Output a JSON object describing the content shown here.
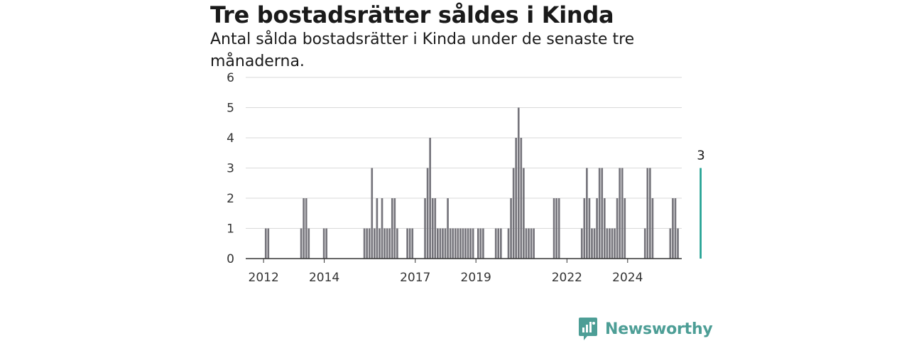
{
  "title": "Tre bostadsrätter såldes i Kinda",
  "subtitle": "Antal sålda bostadsrätter i Kinda under de senaste tre månaderna.",
  "brand": {
    "name": "Newsworthy",
    "icon": "newsworthy-logo-icon",
    "color": "#4d9e96"
  },
  "colors": {
    "bar": "#75747b",
    "highlight": "#1fa091",
    "grid": "#d9d9d9",
    "axis": "#333333"
  },
  "chart_data": {
    "type": "bar",
    "x_start": "2011-07",
    "values": [
      0,
      0,
      0,
      0,
      0,
      0,
      0,
      1,
      1,
      0,
      0,
      0,
      0,
      0,
      0,
      0,
      0,
      0,
      0,
      0,
      0,
      1,
      2,
      2,
      1,
      0,
      0,
      0,
      0,
      0,
      1,
      1,
      0,
      0,
      0,
      0,
      0,
      0,
      0,
      0,
      0,
      0,
      0,
      0,
      0,
      0,
      1,
      1,
      1,
      3,
      1,
      2,
      1,
      2,
      1,
      1,
      1,
      2,
      2,
      1,
      0,
      0,
      0,
      1,
      1,
      1,
      0,
      0,
      0,
      0,
      2,
      3,
      4,
      2,
      2,
      1,
      1,
      1,
      1,
      2,
      1,
      1,
      1,
      1,
      1,
      1,
      1,
      1,
      1,
      1,
      0,
      1,
      1,
      1,
      0,
      0,
      0,
      0,
      1,
      1,
      1,
      0,
      0,
      1,
      2,
      3,
      4,
      5,
      4,
      3,
      1,
      1,
      1,
      1,
      0,
      0,
      0,
      0,
      0,
      0,
      0,
      2,
      2,
      2,
      0,
      0,
      0,
      0,
      0,
      0,
      0,
      0,
      1,
      2,
      3,
      2,
      1,
      1,
      2,
      3,
      3,
      2,
      1,
      1,
      1,
      1,
      2,
      3,
      3,
      2,
      0,
      0,
      0,
      0,
      0,
      0,
      0,
      1,
      3,
      3,
      2,
      0,
      0,
      0,
      0,
      0,
      0,
      1,
      2,
      2,
      1,
      0,
      0,
      0,
      0,
      0,
      0,
      0,
      0,
      3
    ],
    "xticks": [
      "2012",
      "2014",
      "2017",
      "2019",
      "2022",
      "2024"
    ],
    "ylim": [
      0,
      6
    ],
    "yticks": [
      0,
      1,
      2,
      3,
      4,
      5,
      6
    ],
    "grid": true,
    "highlight_last": true,
    "last_label": "3"
  }
}
